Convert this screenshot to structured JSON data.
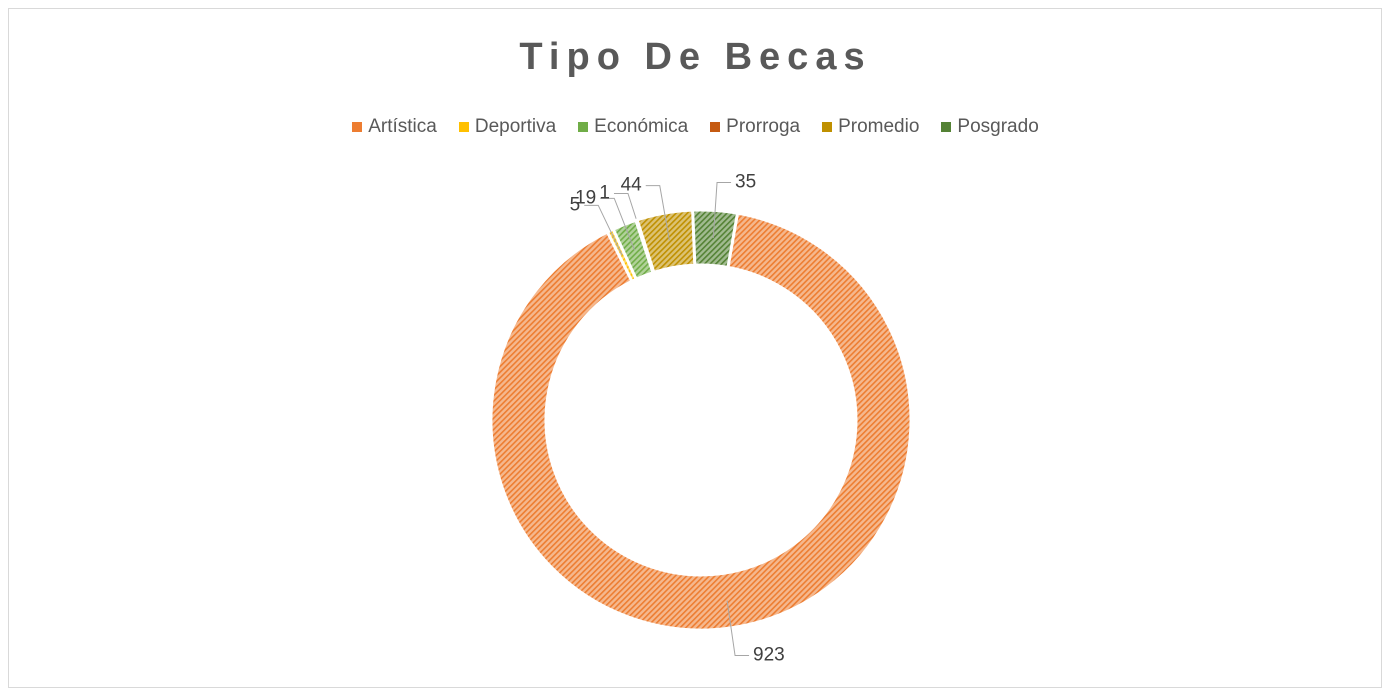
{
  "chart_data": {
    "type": "donut",
    "title": "Tipo De Becas",
    "categories": [
      "Artística",
      "Deportiva",
      "Económica",
      "Prorroga",
      "Promedio",
      "Posgrado"
    ],
    "values": [
      923,
      5,
      19,
      1,
      44,
      35
    ],
    "colors": [
      "#ED7D31",
      "#FFC000",
      "#70AD47",
      "#C55A11",
      "#BF9000",
      "#548235"
    ],
    "legend": "top"
  }
}
